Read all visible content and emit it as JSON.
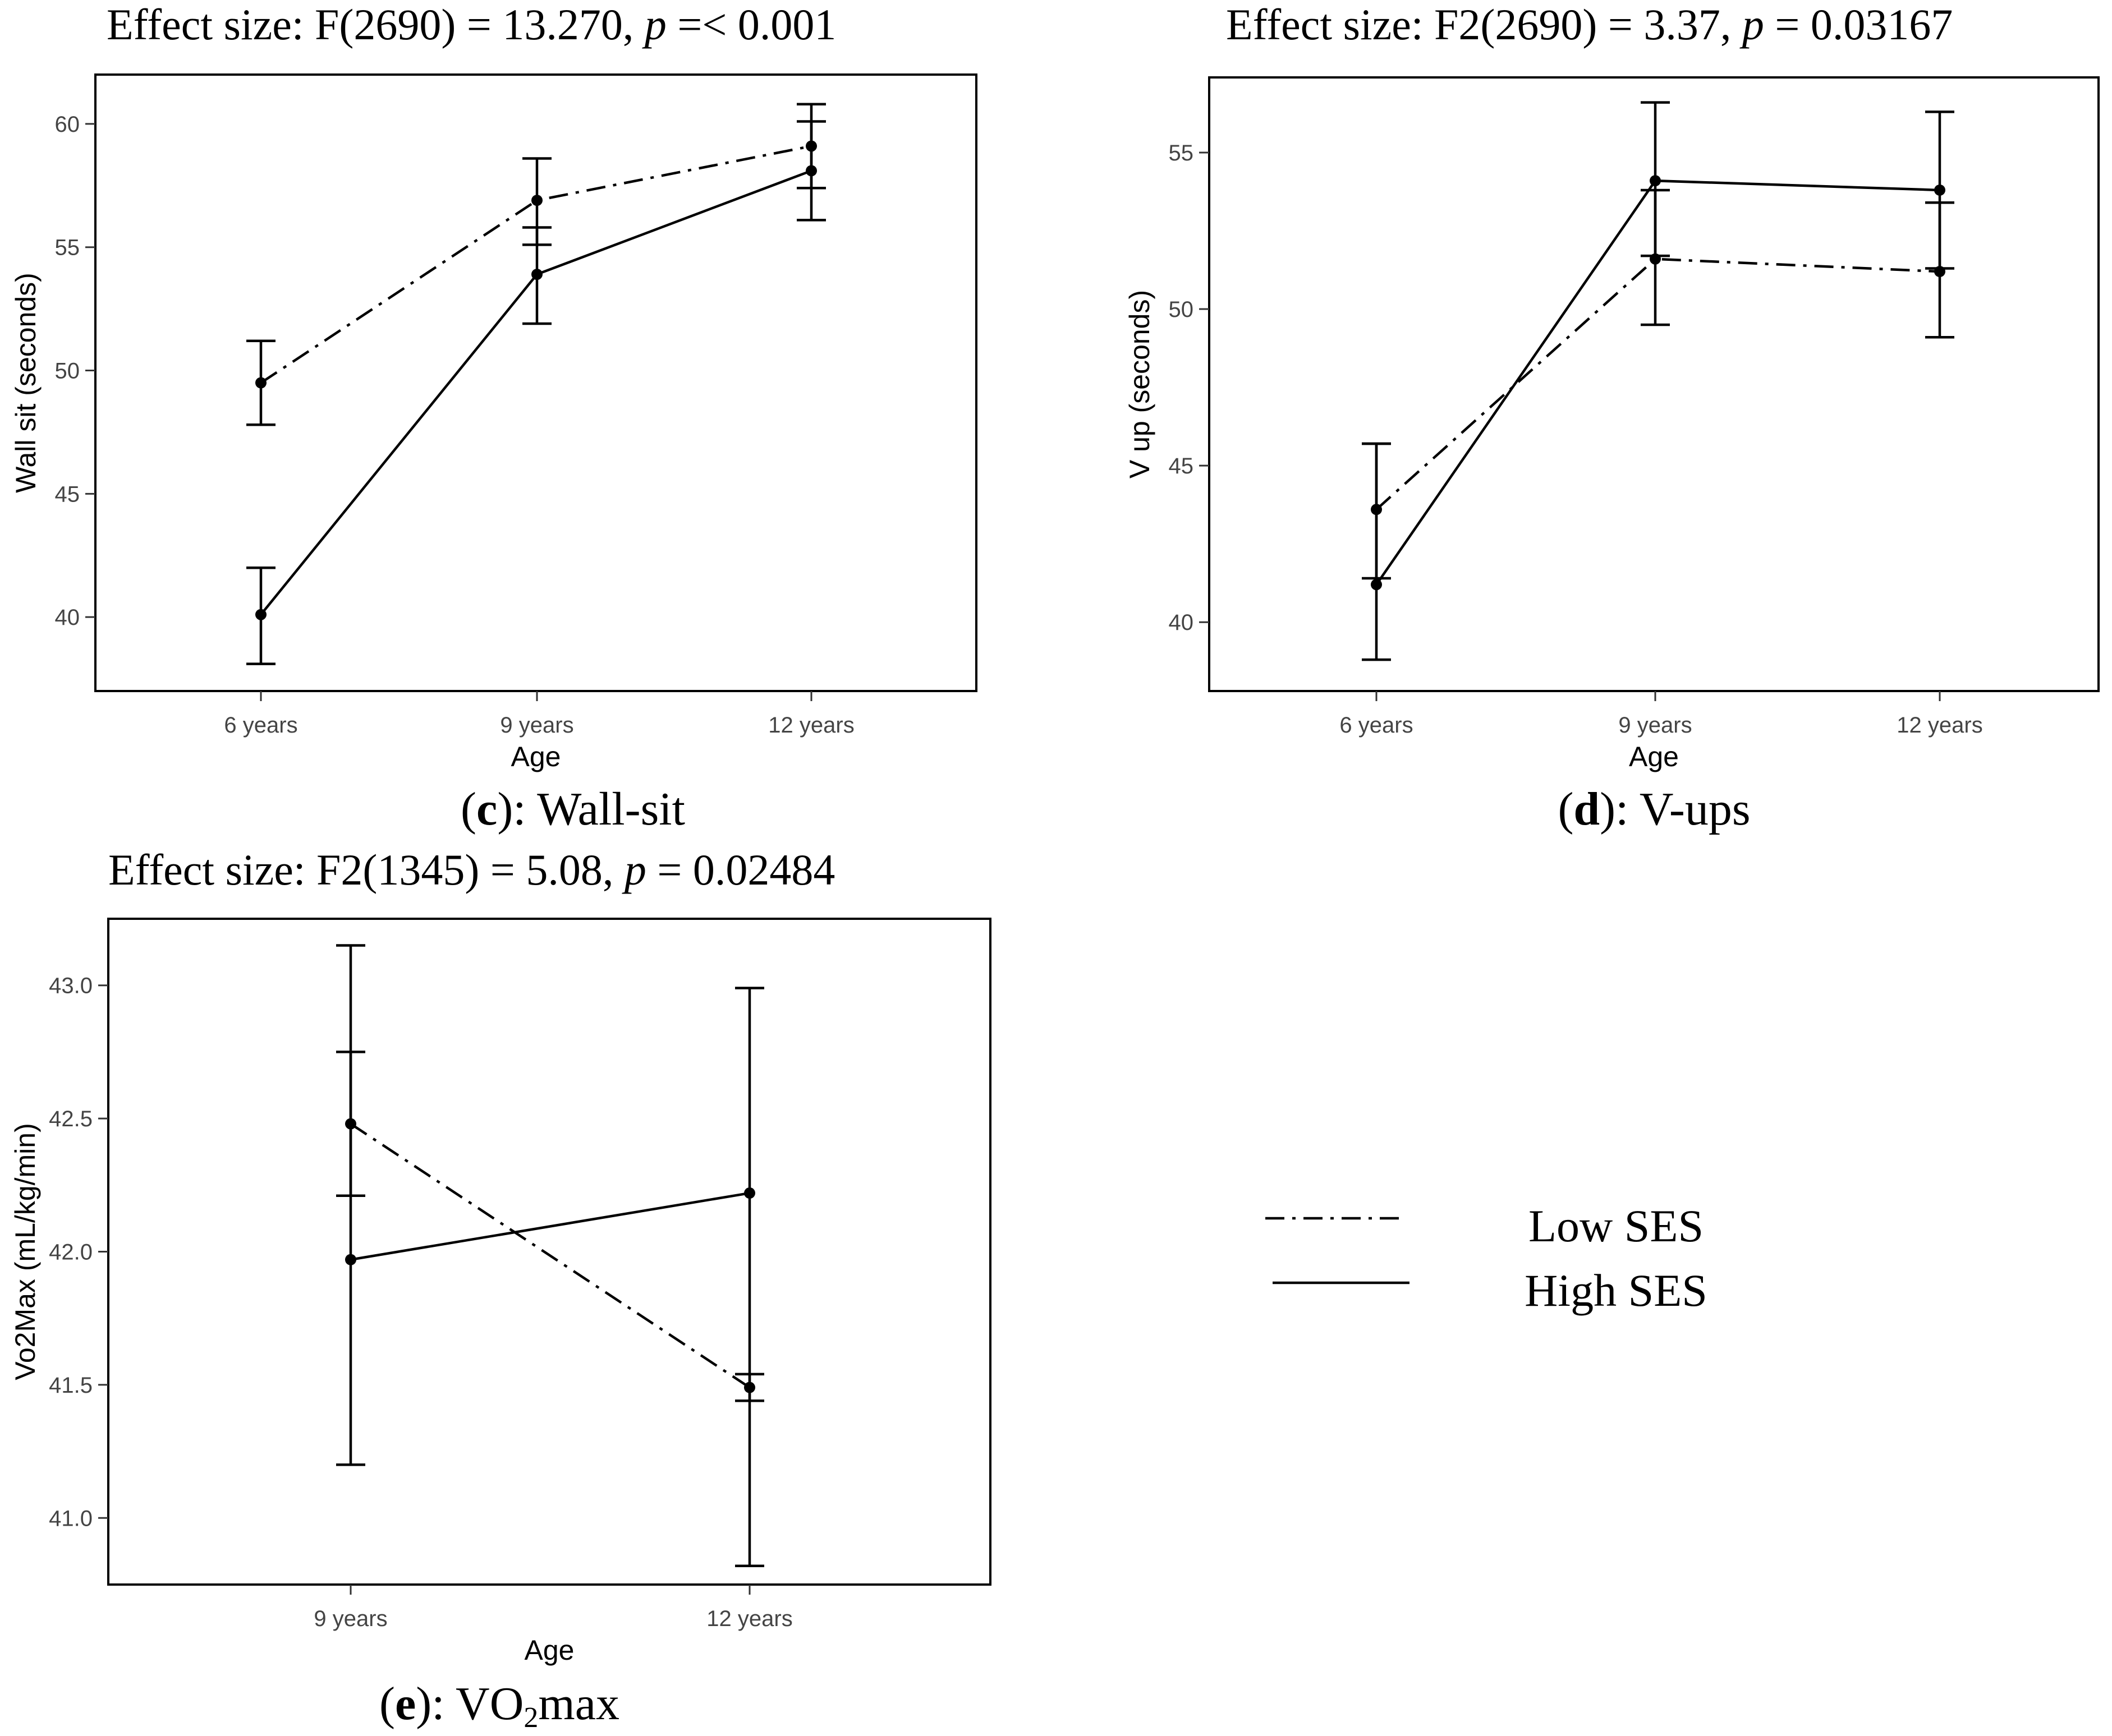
{
  "legend": {
    "low_label": "Low SES",
    "high_label": "High SES",
    "position": "bottom-right"
  },
  "captions": {
    "c": {
      "letter": "c",
      "open": "(",
      "rest": "): Wall-sit"
    },
    "d": {
      "letter": "d",
      "open": "(",
      "rest": "): V-ups"
    },
    "e": {
      "letter": "e",
      "open": "(",
      "rest": "): VO",
      "sub": "2",
      "tail": "max"
    }
  },
  "chart_data": [
    {
      "id": "c",
      "type": "line",
      "title_pre": "Effect size: F(2690) = 13.270, ",
      "title_p": "p",
      "title_post": " =< 0.001",
      "xlabel": "Age",
      "ylabel": "Wall sit (seconds)",
      "categories": [
        "6 years",
        "9 years",
        "12 years"
      ],
      "ylim": [
        37.0,
        62.0
      ],
      "yticks": [
        40,
        45,
        50,
        55,
        60
      ],
      "ytick_labels": [
        "40",
        "45",
        "50",
        "55",
        "60"
      ],
      "series": [
        {
          "name": "Low SES",
          "style": "dashdot",
          "values": [
            49.5,
            56.9,
            59.1
          ],
          "lower": [
            47.8,
            55.1,
            57.4
          ],
          "upper": [
            51.2,
            58.6,
            60.8
          ]
        },
        {
          "name": "High SES",
          "style": "solid",
          "values": [
            40.1,
            53.9,
            58.1
          ],
          "lower": [
            38.1,
            51.9,
            56.1
          ],
          "upper": [
            42.0,
            55.8,
            60.1
          ]
        }
      ]
    },
    {
      "id": "d",
      "type": "line",
      "title_pre": "Effect size: F2(2690) = 3.37, ",
      "title_p": "p",
      "title_post": " = 0.03167",
      "xlabel": "Age",
      "ylabel": "V up (seconds)",
      "categories": [
        "6 years",
        "9 years",
        "12 years"
      ],
      "ylim": [
        37.8,
        57.4
      ],
      "yticks": [
        40,
        45,
        50,
        55
      ],
      "ytick_labels": [
        "40",
        "45",
        "50",
        "55"
      ],
      "series": [
        {
          "name": "Low SES",
          "style": "dashdot",
          "values": [
            43.6,
            51.6,
            51.2
          ],
          "lower": [
            41.4,
            49.5,
            49.1
          ],
          "upper": [
            45.7,
            53.8,
            53.4
          ]
        },
        {
          "name": "High SES",
          "style": "solid",
          "values": [
            41.2,
            54.1,
            53.8
          ],
          "lower": [
            38.8,
            51.7,
            51.3
          ],
          "upper": [
            45.7,
            56.6,
            56.3
          ]
        }
      ]
    },
    {
      "id": "e",
      "type": "line",
      "title_pre": "Effect size: F2(1345) = 5.08, ",
      "title_p": "p",
      "title_post": " = 0.02484",
      "xlabel": "Age",
      "ylabel": "Vo2Max (mL/kg/min)",
      "categories": [
        "9 years",
        "12 years"
      ],
      "ylim": [
        40.75,
        43.25
      ],
      "yticks": [
        41.0,
        41.5,
        42.0,
        42.5,
        43.0
      ],
      "ytick_labels": [
        "41.0",
        "41.5",
        "42.0",
        "42.5",
        "43.0"
      ],
      "series": [
        {
          "name": "Low SES",
          "style": "dashdot",
          "values": [
            42.48,
            41.49
          ],
          "lower": [
            42.21,
            41.44
          ],
          "upper": [
            42.75,
            41.54
          ]
        },
        {
          "name": "High SES",
          "style": "solid",
          "values": [
            41.97,
            42.22
          ],
          "lower": [
            41.2,
            40.82
          ],
          "upper": [
            43.15,
            42.99
          ]
        }
      ]
    }
  ]
}
